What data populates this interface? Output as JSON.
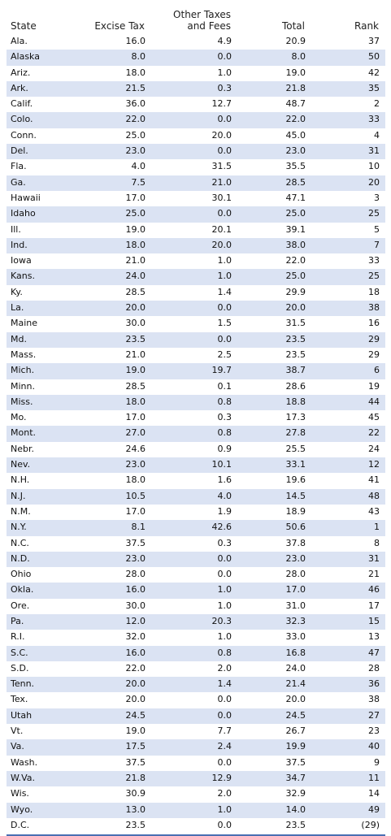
{
  "headers": {
    "state": "State",
    "excise": "Excise Tax",
    "other_line1": "Other Taxes",
    "other_line2": "and Fees",
    "total": "Total",
    "rank": "Rank"
  },
  "rows": [
    [
      "Ala.",
      "16.0",
      "4.9",
      "20.9",
      "37"
    ],
    [
      "Alaska",
      "8.0",
      "0.0",
      "8.0",
      "50"
    ],
    [
      "Ariz.",
      "18.0",
      "1.0",
      "19.0",
      "42"
    ],
    [
      "Ark.",
      "21.5",
      "0.3",
      "21.8",
      "35"
    ],
    [
      "Calif.",
      "36.0",
      "12.7",
      "48.7",
      "2"
    ],
    [
      "Colo.",
      "22.0",
      "0.0",
      "22.0",
      "33"
    ],
    [
      "Conn.",
      "25.0",
      "20.0",
      "45.0",
      "4"
    ],
    [
      "Del.",
      "23.0",
      "0.0",
      "23.0",
      "31"
    ],
    [
      "Fla.",
      "4.0",
      "31.5",
      "35.5",
      "10"
    ],
    [
      "Ga.",
      "7.5",
      "21.0",
      "28.5",
      "20"
    ],
    [
      "Hawaii",
      "17.0",
      "30.1",
      "47.1",
      "3"
    ],
    [
      "Idaho",
      "25.0",
      "0.0",
      "25.0",
      "25"
    ],
    [
      "Ill.",
      "19.0",
      "20.1",
      "39.1",
      "5"
    ],
    [
      "Ind.",
      "18.0",
      "20.0",
      "38.0",
      "7"
    ],
    [
      "Iowa",
      "21.0",
      "1.0",
      "22.0",
      "33"
    ],
    [
      "Kans.",
      "24.0",
      "1.0",
      "25.0",
      "25"
    ],
    [
      "Ky.",
      "28.5",
      "1.4",
      "29.9",
      "18"
    ],
    [
      "La.",
      "20.0",
      "0.0",
      "20.0",
      "38"
    ],
    [
      "Maine",
      "30.0",
      "1.5",
      "31.5",
      "16"
    ],
    [
      "Md.",
      "23.5",
      "0.0",
      "23.5",
      "29"
    ],
    [
      "Mass.",
      "21.0",
      "2.5",
      "23.5",
      "29"
    ],
    [
      "Mich.",
      "19.0",
      "19.7",
      "38.7",
      "6"
    ],
    [
      "Minn.",
      "28.5",
      "0.1",
      "28.6",
      "19"
    ],
    [
      "Miss.",
      "18.0",
      "0.8",
      "18.8",
      "44"
    ],
    [
      "Mo.",
      "17.0",
      "0.3",
      "17.3",
      "45"
    ],
    [
      "Mont.",
      "27.0",
      "0.8",
      "27.8",
      "22"
    ],
    [
      "Nebr.",
      "24.6",
      "0.9",
      "25.5",
      "24"
    ],
    [
      "Nev.",
      "23.0",
      "10.1",
      "33.1",
      "12"
    ],
    [
      "N.H.",
      "18.0",
      "1.6",
      "19.6",
      "41"
    ],
    [
      "N.J.",
      "10.5",
      "4.0",
      "14.5",
      "48"
    ],
    [
      "N.M.",
      "17.0",
      "1.9",
      "18.9",
      "43"
    ],
    [
      "N.Y.",
      "8.1",
      "42.6",
      "50.6",
      "1"
    ],
    [
      "N.C.",
      "37.5",
      "0.3",
      "37.8",
      "8"
    ],
    [
      "N.D.",
      "23.0",
      "0.0",
      "23.0",
      "31"
    ],
    [
      "Ohio",
      "28.0",
      "0.0",
      "28.0",
      "21"
    ],
    [
      "Okla.",
      "16.0",
      "1.0",
      "17.0",
      "46"
    ],
    [
      "Ore.",
      "30.0",
      "1.0",
      "31.0",
      "17"
    ],
    [
      "Pa.",
      "12.0",
      "20.3",
      "32.3",
      "15"
    ],
    [
      "R.I.",
      "32.0",
      "1.0",
      "33.0",
      "13"
    ],
    [
      "S.C.",
      "16.0",
      "0.8",
      "16.8",
      "47"
    ],
    [
      "S.D.",
      "22.0",
      "2.0",
      "24.0",
      "28"
    ],
    [
      "Tenn.",
      "20.0",
      "1.4",
      "21.4",
      "36"
    ],
    [
      "Tex.",
      "20.0",
      "0.0",
      "20.0",
      "38"
    ],
    [
      "Utah",
      "24.5",
      "0.0",
      "24.5",
      "27"
    ],
    [
      "Vt.",
      "19.0",
      "7.7",
      "26.7",
      "23"
    ],
    [
      "Va.",
      "17.5",
      "2.4",
      "19.9",
      "40"
    ],
    [
      "Wash.",
      "37.5",
      "0.0",
      "37.5",
      "9"
    ],
    [
      "W.Va.",
      "21.8",
      "12.9",
      "34.7",
      "11"
    ],
    [
      "Wis.",
      "30.9",
      "2.0",
      "32.9",
      "14"
    ],
    [
      "Wyo.",
      "13.0",
      "1.0",
      "14.0",
      "49"
    ],
    [
      "D.C.",
      "23.5",
      "0.0",
      "23.5",
      "(29)"
    ]
  ],
  "colors": {
    "alt_row": "#dbe3f3",
    "grid": "#c9c9c9",
    "bottom_rule": "#4a6fb3"
  }
}
